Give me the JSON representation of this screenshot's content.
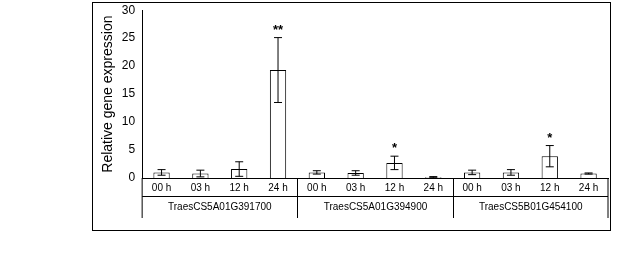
{
  "chart_data": {
    "type": "bar",
    "y_label": "Relative gene expression",
    "categories": [
      "00 h",
      "03 h",
      "12 h",
      "24 h",
      "00 h",
      "03 h",
      "12 h",
      "24 h",
      "00 h",
      "03 h",
      "12 h",
      "24 h"
    ],
    "groups": [
      "TraesCS5A01G391700",
      "TraesCS5A01G394900",
      "TraesCS5B01G454100"
    ],
    "values": [
      1.0,
      0.8,
      1.6,
      19.3,
      1.0,
      0.9,
      2.7,
      0.15,
      1.0,
      1.0,
      3.9,
      0.8
    ],
    "errors": [
      0.5,
      0.6,
      1.3,
      5.8,
      0.3,
      0.4,
      1.2,
      0.1,
      0.4,
      0.5,
      1.9,
      0.1
    ],
    "significance": [
      null,
      null,
      null,
      "**",
      null,
      null,
      "*",
      null,
      null,
      null,
      "*",
      null
    ],
    "color": "#ffffff",
    "ylim": [
      0,
      30
    ],
    "yticks": [
      0,
      5,
      10,
      15,
      20,
      25,
      30
    ],
    "grid": false
  }
}
